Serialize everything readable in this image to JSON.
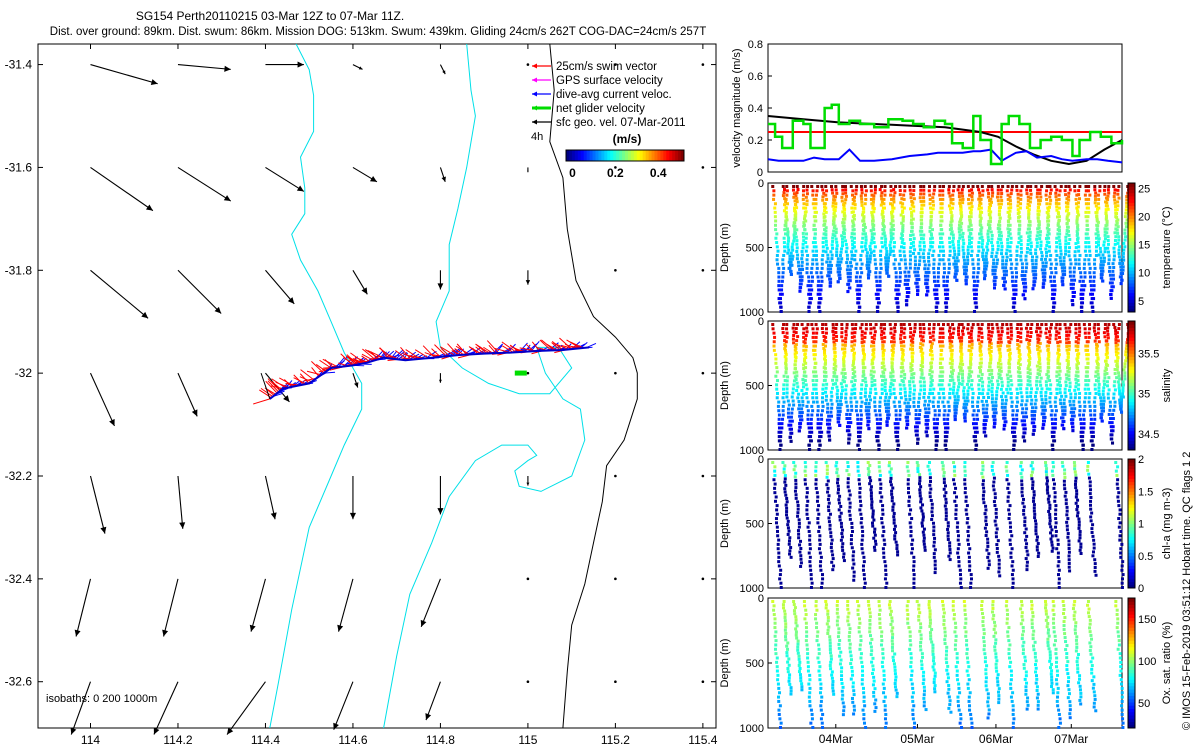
{
  "title_line1": "SG154 Perth20110215 03-Mar 12Z to 07-Mar 11Z.",
  "title_line2": "Dist. over ground: 89km. Dist. swum: 86km. Mission DOG: 513km. Swum: 439km. Gliding 24cm/s 262T COG-DAC=24cm/s 257T",
  "side_note": "© IMOS 15-Feb-2019 03:51:12 Hobart time. QC flags 1  2",
  "chart_data": [
    {
      "type": "map",
      "name": "glider-track-map",
      "x_ticks": [
        "114",
        "114.2",
        "114.4",
        "114.6",
        "114.8",
        "115",
        "115.2",
        "115.4"
      ],
      "y_ticks": [
        "-31.4",
        "-31.6",
        "-31.8",
        "-32",
        "-32.2",
        "-32.4",
        "-32.6"
      ],
      "xlim": [
        113.88,
        115.43
      ],
      "ylim": [
        -32.69,
        -31.36
      ],
      "legend": [
        {
          "label": "25cm/s swim vector",
          "color": "#ff0000"
        },
        {
          "label": "GPS surface velocity",
          "color": "#ff00ff"
        },
        {
          "label": "dive-avg current veloc.",
          "color": "#0000ff"
        },
        {
          "label": "net glider velocity",
          "color": "#00dd00"
        },
        {
          "label": "sfc geo. vel. 07-Mar-2011",
          "color": "#000000"
        }
      ],
      "legend_extra": "4h",
      "colorbar": {
        "label": "(m/s)",
        "ticks": [
          "0",
          "0.2",
          "0.4"
        ],
        "range": [
          -0.03,
          0.52
        ]
      },
      "isobaths_label": "isobaths: 0   200  1000m",
      "track": [
        [
          114.41,
          -32.05
        ],
        [
          114.44,
          -32.03
        ],
        [
          114.5,
          -32.02
        ],
        [
          114.55,
          -31.99
        ],
        [
          114.6,
          -31.985
        ],
        [
          114.63,
          -31.98
        ],
        [
          114.67,
          -31.97
        ],
        [
          114.72,
          -31.975
        ],
        [
          114.78,
          -31.97
        ],
        [
          114.84,
          -31.965
        ],
        [
          114.9,
          -31.962
        ],
        [
          114.96,
          -31.96
        ],
        [
          115.02,
          -31.957
        ],
        [
          115.08,
          -31.955
        ],
        [
          115.14,
          -31.95
        ]
      ],
      "geo_vel_grid": {
        "lons": [
          114.0,
          114.2,
          114.4,
          114.6,
          114.8,
          115.0,
          115.2,
          115.4
        ],
        "lats": [
          -31.4,
          -31.6,
          -31.8,
          -32.0,
          -32.2,
          -32.4,
          -32.6
        ],
        "u": [
          [
            0.14,
            0.11,
            0.08,
            0.02,
            0.01,
            0.0,
            0.0,
            0.0
          ],
          [
            0.13,
            0.11,
            0.08,
            0.05,
            0.01,
            0.0,
            0.0,
            0.0
          ],
          [
            0.12,
            0.09,
            0.06,
            0.03,
            0.0,
            0.0,
            0.0,
            0.0
          ],
          [
            0.05,
            0.04,
            0.05,
            0.01,
            0.0,
            0.0,
            0.0,
            0.0
          ],
          [
            0.03,
            0.01,
            0.02,
            0.0,
            0.0,
            0.0,
            0.0,
            0.0
          ],
          [
            -0.03,
            -0.03,
            -0.03,
            -0.03,
            -0.04,
            0.0,
            0.0,
            0.0
          ],
          [
            -0.04,
            -0.05,
            -0.08,
            -0.04,
            -0.03,
            0.0,
            0.0,
            0.0
          ]
        ],
        "v": [
          [
            -0.04,
            -0.01,
            0.0,
            -0.01,
            -0.02,
            0.0,
            0.0,
            0.0
          ],
          [
            -0.09,
            -0.07,
            -0.05,
            -0.03,
            -0.03,
            -0.01,
            0.0,
            0.0
          ],
          [
            -0.1,
            -0.09,
            -0.07,
            -0.05,
            -0.04,
            -0.03,
            0.0,
            0.0
          ],
          [
            -0.11,
            -0.09,
            -0.06,
            -0.03,
            -0.02,
            0.0,
            0.0,
            0.0
          ],
          [
            -0.12,
            -0.11,
            -0.09,
            -0.09,
            -0.08,
            -0.02,
            0.0,
            0.0
          ],
          [
            -0.12,
            -0.12,
            -0.11,
            -0.11,
            -0.1,
            0.0,
            0.0,
            0.0
          ],
          [
            -0.11,
            -0.11,
            -0.11,
            -0.1,
            -0.08,
            0.0,
            0.0,
            0.0
          ]
        ]
      },
      "coastline": [
        [
          115.05,
          -31.36
        ],
        [
          115.06,
          -31.45
        ],
        [
          115.05,
          -31.55
        ],
        [
          115.08,
          -31.62
        ],
        [
          115.09,
          -31.72
        ],
        [
          115.11,
          -31.82
        ],
        [
          115.15,
          -31.89
        ],
        [
          115.2,
          -31.93
        ],
        [
          115.24,
          -31.97
        ],
        [
          115.25,
          -32.0
        ],
        [
          115.25,
          -32.05
        ],
        [
          115.22,
          -32.13
        ],
        [
          115.18,
          -32.18
        ],
        [
          115.17,
          -32.25
        ],
        [
          115.15,
          -32.33
        ],
        [
          115.13,
          -32.41
        ],
        [
          115.1,
          -32.49
        ],
        [
          115.09,
          -32.58
        ],
        [
          115.08,
          -32.69
        ]
      ],
      "isobath_200": [
        [
          114.86,
          -31.36
        ],
        [
          114.87,
          -31.45
        ],
        [
          114.88,
          -31.5
        ],
        [
          114.86,
          -31.6
        ],
        [
          114.84,
          -31.68
        ],
        [
          114.82,
          -31.75
        ],
        [
          114.82,
          -31.84
        ],
        [
          114.79,
          -31.9
        ],
        [
          114.8,
          -31.95
        ],
        [
          114.85,
          -31.99
        ],
        [
          114.91,
          -32.02
        ],
        [
          114.98,
          -32.04
        ],
        [
          115.05,
          -32.04
        ],
        [
          115.1,
          -31.99
        ],
        [
          115.07,
          -31.95
        ],
        [
          115.02,
          -31.95
        ],
        [
          115.04,
          -32.0
        ],
        [
          115.08,
          -32.05
        ],
        [
          115.12,
          -32.07
        ],
        [
          115.13,
          -32.13
        ],
        [
          115.1,
          -32.2
        ],
        [
          115.03,
          -32.23
        ],
        [
          114.98,
          -32.22
        ],
        [
          114.97,
          -32.19
        ],
        [
          115.0,
          -32.17
        ],
        [
          115.02,
          -32.16
        ],
        [
          115.0,
          -32.14
        ],
        [
          114.94,
          -32.14
        ],
        [
          114.88,
          -32.17
        ],
        [
          114.82,
          -32.24
        ],
        [
          114.78,
          -32.33
        ],
        [
          114.73,
          -32.43
        ],
        [
          114.7,
          -32.55
        ],
        [
          114.67,
          -32.69
        ]
      ],
      "isobath_1000": [
        [
          114.47,
          -31.36
        ],
        [
          114.5,
          -31.41
        ],
        [
          114.51,
          -31.46
        ],
        [
          114.51,
          -31.53
        ],
        [
          114.48,
          -31.58
        ],
        [
          114.49,
          -31.64
        ],
        [
          114.49,
          -31.69
        ],
        [
          114.46,
          -31.73
        ],
        [
          114.48,
          -31.78
        ],
        [
          114.52,
          -31.84
        ],
        [
          114.55,
          -31.9
        ],
        [
          114.58,
          -31.96
        ],
        [
          114.62,
          -32.02
        ],
        [
          114.62,
          -32.07
        ],
        [
          114.58,
          -32.14
        ],
        [
          114.55,
          -32.2
        ],
        [
          114.5,
          -32.3
        ],
        [
          114.46,
          -32.46
        ],
        [
          114.43,
          -32.6
        ],
        [
          114.41,
          -32.69
        ]
      ]
    },
    {
      "type": "line",
      "name": "velocity-magnitude",
      "ylabel": "velocity magnitude (m/s)",
      "ylim": [
        0,
        0.8
      ],
      "y_ticks": [
        "0",
        "0.2",
        "0.4",
        "0.6",
        "0.8"
      ],
      "xlim": [
        0,
        1
      ],
      "series": [
        {
          "name": "swim",
          "color": "#ff0000",
          "x": [
            0.0,
            1.0
          ],
          "y": [
            0.25,
            0.25
          ]
        },
        {
          "name": "geo velocity",
          "color": "#000000",
          "x": [
            0.0,
            0.1,
            0.2,
            0.3,
            0.4,
            0.5,
            0.6,
            0.65,
            0.7,
            0.75,
            0.8,
            0.85,
            0.9,
            0.95,
            1.0
          ],
          "y": [
            0.35,
            0.33,
            0.31,
            0.3,
            0.29,
            0.28,
            0.25,
            0.22,
            0.16,
            0.11,
            0.07,
            0.05,
            0.07,
            0.14,
            0.2
          ]
        },
        {
          "name": "dive-avg current",
          "color": "#0000ff",
          "x": [
            0.0,
            0.03,
            0.07,
            0.1,
            0.13,
            0.16,
            0.2,
            0.23,
            0.26,
            0.3,
            0.35,
            0.4,
            0.45,
            0.48,
            0.5,
            0.52,
            0.55,
            0.58,
            0.6,
            0.63,
            0.66,
            0.7,
            0.73,
            0.76,
            0.8,
            0.83,
            0.86,
            0.9,
            0.93,
            0.96,
            1.0
          ],
          "y": [
            0.08,
            0.07,
            0.07,
            0.07,
            0.09,
            0.08,
            0.08,
            0.14,
            0.07,
            0.07,
            0.08,
            0.1,
            0.11,
            0.12,
            0.12,
            0.12,
            0.12,
            0.13,
            0.13,
            0.14,
            0.07,
            0.12,
            0.13,
            0.09,
            0.1,
            0.08,
            0.07,
            0.08,
            0.08,
            0.07,
            0.06
          ]
        },
        {
          "name": "net glider velocity",
          "color": "#00dd00",
          "step": true,
          "x": [
            0.0,
            0.02,
            0.04,
            0.07,
            0.1,
            0.12,
            0.16,
            0.18,
            0.2,
            0.23,
            0.26,
            0.3,
            0.34,
            0.38,
            0.41,
            0.44,
            0.47,
            0.5,
            0.52,
            0.55,
            0.58,
            0.6,
            0.63,
            0.66,
            0.68,
            0.71,
            0.74,
            0.77,
            0.8,
            0.83,
            0.86,
            0.88,
            0.91,
            0.94,
            0.97,
            1.0
          ],
          "y": [
            0.3,
            0.22,
            0.15,
            0.32,
            0.3,
            0.15,
            0.4,
            0.42,
            0.3,
            0.32,
            0.3,
            0.28,
            0.33,
            0.32,
            0.3,
            0.28,
            0.32,
            0.3,
            0.18,
            0.15,
            0.35,
            0.2,
            0.05,
            0.3,
            0.35,
            0.3,
            0.15,
            0.2,
            0.22,
            0.2,
            0.1,
            0.2,
            0.25,
            0.22,
            0.18,
            0.2
          ]
        }
      ]
    },
    {
      "type": "scatter",
      "name": "temperature-section",
      "ylabel": "Depth (m)",
      "y_ticks": [
        "0",
        "500",
        "1000"
      ],
      "ylim": [
        1000,
        0
      ],
      "colorbar": {
        "label": "temperature (°C)",
        "ticks": [
          "5",
          "10",
          "15",
          "20",
          "25"
        ],
        "range": [
          3,
          26
        ]
      }
    },
    {
      "type": "scatter",
      "name": "salinity-section",
      "ylabel": "Depth (m)",
      "y_ticks": [
        "0",
        "500",
        "1000"
      ],
      "ylim": [
        1000,
        0
      ],
      "colorbar": {
        "label": "salinity",
        "ticks": [
          "34.5",
          "35",
          "35.5"
        ],
        "range": [
          34.3,
          35.9
        ]
      }
    },
    {
      "type": "scatter",
      "name": "chla-section",
      "ylabel": "Depth (m)",
      "y_ticks": [
        "0",
        "500",
        "1000"
      ],
      "ylim": [
        1000,
        0
      ],
      "colorbar": {
        "label": "chl-a (mg m-3)",
        "ticks": [
          "0",
          "0.5",
          "1",
          "1.5",
          "2"
        ],
        "range": [
          0,
          2
        ]
      }
    },
    {
      "type": "scatter",
      "name": "oxygen-section",
      "ylabel": "Depth (m)",
      "y_ticks": [
        "0",
        "500",
        "1000"
      ],
      "ylim": [
        1000,
        0
      ],
      "colorbar": {
        "label": "Ox. sat. ratio (%)",
        "ticks": [
          "50",
          "100",
          "150"
        ],
        "range": [
          20,
          175
        ]
      },
      "x_ticks": [
        "04Mar",
        "05Mar",
        "06Mar",
        "07Mar"
      ]
    }
  ]
}
